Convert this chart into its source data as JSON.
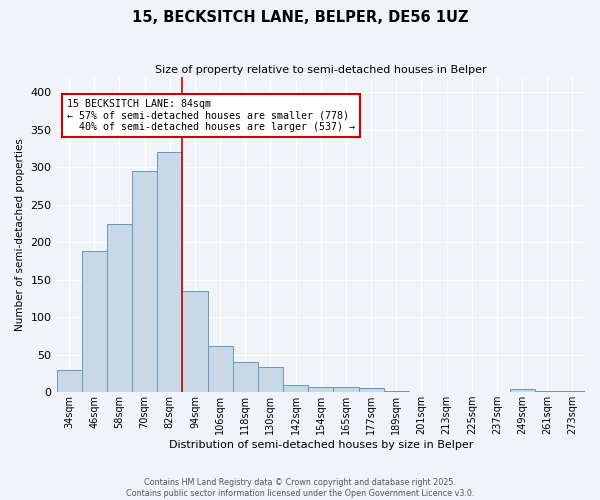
{
  "title": "15, BECKSITCH LANE, BELPER, DE56 1UZ",
  "subtitle": "Size of property relative to semi-detached houses in Belper",
  "xlabel": "Distribution of semi-detached houses by size in Belper",
  "ylabel": "Number of semi-detached properties",
  "bar_labels": [
    "34sqm",
    "46sqm",
    "58sqm",
    "70sqm",
    "82sqm",
    "94sqm",
    "106sqm",
    "118sqm",
    "130sqm",
    "142sqm",
    "154sqm",
    "165sqm",
    "177sqm",
    "189sqm",
    "201sqm",
    "213sqm",
    "225sqm",
    "237sqm",
    "249sqm",
    "261sqm",
    "273sqm"
  ],
  "bar_values": [
    30,
    188,
    224,
    295,
    320,
    135,
    61,
    40,
    33,
    10,
    7,
    7,
    5,
    2,
    0,
    0,
    0,
    0,
    4,
    2,
    2
  ],
  "bar_color": "#c8d8e8",
  "bar_edge_color": "#6699bb",
  "ylim": [
    0,
    420
  ],
  "yticks": [
    0,
    50,
    100,
    150,
    200,
    250,
    300,
    350,
    400
  ],
  "property_line_label": "15 BECKSITCH LANE: 84sqm",
  "pct_smaller": 57,
  "count_smaller": 778,
  "pct_larger": 40,
  "count_larger": 537,
  "annotation_box_color": "#ffffff",
  "annotation_box_edge": "#cc0000",
  "vline_color": "#cc0000",
  "bg_color": "#f0f4f8",
  "footer1": "Contains HM Land Registry data © Crown copyright and database right 2025.",
  "footer2": "Contains public sector information licensed under the Open Government Licence v3.0."
}
